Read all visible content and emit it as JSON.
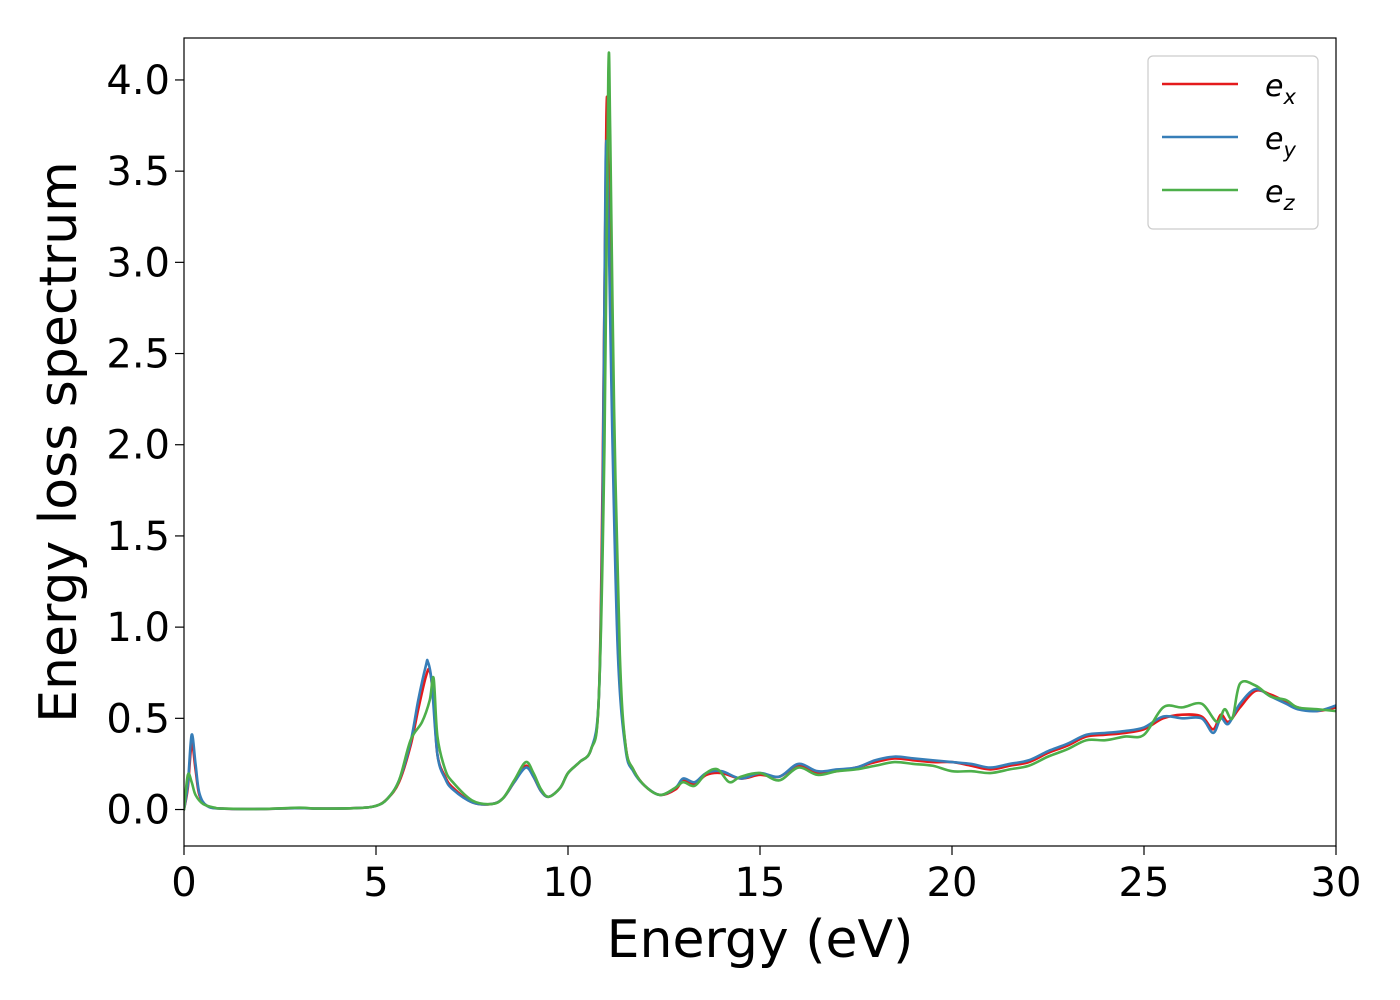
{
  "chart_data": {
    "type": "line",
    "title": "",
    "xlabel": "Energy (eV)",
    "ylabel": "Energy loss spectrum",
    "xlim": [
      0,
      30
    ],
    "ylim": [
      -0.2,
      4.23
    ],
    "xticks": [
      0,
      5,
      10,
      15,
      20,
      25,
      30
    ],
    "xtick_labels": [
      "0",
      "5",
      "10",
      "15",
      "20",
      "25",
      "30"
    ],
    "yticks": [
      0.0,
      0.5,
      1.0,
      1.5,
      2.0,
      2.5,
      3.0,
      3.5,
      4.0
    ],
    "ytick_labels": [
      "0.0",
      "0.5",
      "1.0",
      "1.5",
      "2.0",
      "2.5",
      "3.0",
      "3.5",
      "4.0"
    ],
    "grid": false,
    "legend_position": "top-right",
    "series": [
      {
        "name": "e_x",
        "label_base": "e",
        "label_sub": "x",
        "color": "#e41a1c",
        "points": [
          [
            0,
            0.0
          ],
          [
            0.1,
            0.12
          ],
          [
            0.2,
            0.36
          ],
          [
            0.3,
            0.22
          ],
          [
            0.4,
            0.08
          ],
          [
            0.6,
            0.02
          ],
          [
            1.0,
            0.005
          ],
          [
            2.0,
            0.003
          ],
          [
            3.0,
            0.008
          ],
          [
            3.5,
            0.005
          ],
          [
            4.5,
            0.008
          ],
          [
            5.0,
            0.02
          ],
          [
            5.3,
            0.06
          ],
          [
            5.6,
            0.15
          ],
          [
            5.9,
            0.35
          ],
          [
            6.1,
            0.55
          ],
          [
            6.3,
            0.73
          ],
          [
            6.4,
            0.76
          ],
          [
            6.5,
            0.6
          ],
          [
            6.6,
            0.3
          ],
          [
            6.8,
            0.18
          ],
          [
            7.0,
            0.12
          ],
          [
            7.5,
            0.04
          ],
          [
            8.0,
            0.03
          ],
          [
            8.3,
            0.06
          ],
          [
            8.6,
            0.15
          ],
          [
            8.9,
            0.24
          ],
          [
            9.1,
            0.18
          ],
          [
            9.3,
            0.1
          ],
          [
            9.5,
            0.07
          ],
          [
            9.8,
            0.12
          ],
          [
            10.0,
            0.2
          ],
          [
            10.3,
            0.26
          ],
          [
            10.6,
            0.33
          ],
          [
            10.8,
            0.6
          ],
          [
            10.9,
            1.8
          ],
          [
            11.0,
            3.8
          ],
          [
            11.05,
            3.5
          ],
          [
            11.15,
            2.3
          ],
          [
            11.3,
            0.9
          ],
          [
            11.5,
            0.35
          ],
          [
            11.7,
            0.22
          ],
          [
            12.0,
            0.13
          ],
          [
            12.4,
            0.08
          ],
          [
            12.8,
            0.11
          ],
          [
            13.0,
            0.16
          ],
          [
            13.3,
            0.14
          ],
          [
            13.6,
            0.19
          ],
          [
            14.0,
            0.2
          ],
          [
            14.5,
            0.17
          ],
          [
            15.0,
            0.19
          ],
          [
            15.5,
            0.18
          ],
          [
            16.0,
            0.24
          ],
          [
            16.5,
            0.2
          ],
          [
            17.0,
            0.21
          ],
          [
            17.5,
            0.23
          ],
          [
            18.0,
            0.26
          ],
          [
            18.5,
            0.28
          ],
          [
            19.0,
            0.27
          ],
          [
            19.5,
            0.26
          ],
          [
            20.0,
            0.26
          ],
          [
            20.5,
            0.24
          ],
          [
            21.0,
            0.22
          ],
          [
            21.5,
            0.24
          ],
          [
            22.0,
            0.26
          ],
          [
            22.5,
            0.31
          ],
          [
            23.0,
            0.35
          ],
          [
            23.5,
            0.4
          ],
          [
            24.0,
            0.41
          ],
          [
            24.5,
            0.42
          ],
          [
            25.0,
            0.44
          ],
          [
            25.5,
            0.5
          ],
          [
            26.0,
            0.52
          ],
          [
            26.5,
            0.51
          ],
          [
            26.8,
            0.44
          ],
          [
            27.0,
            0.52
          ],
          [
            27.2,
            0.48
          ],
          [
            27.5,
            0.56
          ],
          [
            27.9,
            0.65
          ],
          [
            28.3,
            0.63
          ],
          [
            28.7,
            0.59
          ],
          [
            29.0,
            0.56
          ],
          [
            29.5,
            0.54
          ],
          [
            30.0,
            0.56
          ]
        ]
      },
      {
        "name": "e_y",
        "label_base": "e",
        "label_sub": "y",
        "color": "#377eb8",
        "points": [
          [
            0,
            0.0
          ],
          [
            0.1,
            0.14
          ],
          [
            0.2,
            0.41
          ],
          [
            0.3,
            0.25
          ],
          [
            0.4,
            0.09
          ],
          [
            0.6,
            0.02
          ],
          [
            1.0,
            0.005
          ],
          [
            2.0,
            0.003
          ],
          [
            3.0,
            0.008
          ],
          [
            3.5,
            0.005
          ],
          [
            4.5,
            0.008
          ],
          [
            5.0,
            0.02
          ],
          [
            5.3,
            0.06
          ],
          [
            5.6,
            0.16
          ],
          [
            5.9,
            0.37
          ],
          [
            6.1,
            0.6
          ],
          [
            6.3,
            0.79
          ],
          [
            6.35,
            0.81
          ],
          [
            6.45,
            0.7
          ],
          [
            6.6,
            0.3
          ],
          [
            6.8,
            0.17
          ],
          [
            7.0,
            0.11
          ],
          [
            7.5,
            0.04
          ],
          [
            8.0,
            0.03
          ],
          [
            8.3,
            0.06
          ],
          [
            8.6,
            0.15
          ],
          [
            8.9,
            0.23
          ],
          [
            9.1,
            0.18
          ],
          [
            9.3,
            0.1
          ],
          [
            9.5,
            0.07
          ],
          [
            9.8,
            0.12
          ],
          [
            10.0,
            0.2
          ],
          [
            10.3,
            0.26
          ],
          [
            10.6,
            0.33
          ],
          [
            10.8,
            0.6
          ],
          [
            10.9,
            1.6
          ],
          [
            10.98,
            3.55
          ],
          [
            11.05,
            3.3
          ],
          [
            11.15,
            2.1
          ],
          [
            11.3,
            0.85
          ],
          [
            11.5,
            0.33
          ],
          [
            11.7,
            0.21
          ],
          [
            12.0,
            0.13
          ],
          [
            12.4,
            0.08
          ],
          [
            12.8,
            0.12
          ],
          [
            13.0,
            0.17
          ],
          [
            13.3,
            0.15
          ],
          [
            13.6,
            0.2
          ],
          [
            14.0,
            0.21
          ],
          [
            14.5,
            0.17
          ],
          [
            15.0,
            0.2
          ],
          [
            15.5,
            0.18
          ],
          [
            16.0,
            0.25
          ],
          [
            16.5,
            0.21
          ],
          [
            17.0,
            0.22
          ],
          [
            17.5,
            0.23
          ],
          [
            18.0,
            0.27
          ],
          [
            18.5,
            0.29
          ],
          [
            19.0,
            0.28
          ],
          [
            19.5,
            0.27
          ],
          [
            20.0,
            0.26
          ],
          [
            20.5,
            0.25
          ],
          [
            21.0,
            0.23
          ],
          [
            21.5,
            0.25
          ],
          [
            22.0,
            0.27
          ],
          [
            22.5,
            0.32
          ],
          [
            23.0,
            0.36
          ],
          [
            23.5,
            0.41
          ],
          [
            24.0,
            0.42
          ],
          [
            24.5,
            0.43
          ],
          [
            25.0,
            0.45
          ],
          [
            25.5,
            0.51
          ],
          [
            26.0,
            0.5
          ],
          [
            26.5,
            0.5
          ],
          [
            26.8,
            0.42
          ],
          [
            27.0,
            0.5
          ],
          [
            27.2,
            0.47
          ],
          [
            27.5,
            0.58
          ],
          [
            27.9,
            0.66
          ],
          [
            28.3,
            0.62
          ],
          [
            28.7,
            0.58
          ],
          [
            29.0,
            0.55
          ],
          [
            29.5,
            0.54
          ],
          [
            30.0,
            0.57
          ]
        ]
      },
      {
        "name": "e_z",
        "label_base": "e",
        "label_sub": "z",
        "color": "#4daf4a",
        "points": [
          [
            0,
            0.0
          ],
          [
            0.1,
            0.19
          ],
          [
            0.2,
            0.15
          ],
          [
            0.3,
            0.08
          ],
          [
            0.5,
            0.03
          ],
          [
            0.8,
            0.01
          ],
          [
            1.0,
            0.005
          ],
          [
            2.0,
            0.003
          ],
          [
            3.0,
            0.01
          ],
          [
            3.5,
            0.005
          ],
          [
            4.5,
            0.008
          ],
          [
            5.0,
            0.02
          ],
          [
            5.3,
            0.06
          ],
          [
            5.6,
            0.16
          ],
          [
            5.9,
            0.38
          ],
          [
            6.2,
            0.48
          ],
          [
            6.4,
            0.6
          ],
          [
            6.5,
            0.72
          ],
          [
            6.6,
            0.4
          ],
          [
            6.8,
            0.22
          ],
          [
            7.0,
            0.15
          ],
          [
            7.5,
            0.05
          ],
          [
            8.0,
            0.03
          ],
          [
            8.3,
            0.06
          ],
          [
            8.6,
            0.16
          ],
          [
            8.9,
            0.26
          ],
          [
            9.1,
            0.2
          ],
          [
            9.3,
            0.11
          ],
          [
            9.5,
            0.07
          ],
          [
            9.8,
            0.12
          ],
          [
            10.0,
            0.2
          ],
          [
            10.3,
            0.26
          ],
          [
            10.6,
            0.33
          ],
          [
            10.8,
            0.6
          ],
          [
            10.95,
            2.0
          ],
          [
            11.05,
            4.04
          ],
          [
            11.1,
            3.7
          ],
          [
            11.2,
            2.2
          ],
          [
            11.35,
            0.85
          ],
          [
            11.5,
            0.35
          ],
          [
            11.7,
            0.22
          ],
          [
            12.0,
            0.13
          ],
          [
            12.4,
            0.08
          ],
          [
            12.8,
            0.12
          ],
          [
            13.0,
            0.15
          ],
          [
            13.3,
            0.13
          ],
          [
            13.6,
            0.2
          ],
          [
            13.9,
            0.22
          ],
          [
            14.2,
            0.15
          ],
          [
            14.5,
            0.18
          ],
          [
            15.0,
            0.2
          ],
          [
            15.5,
            0.16
          ],
          [
            16.0,
            0.23
          ],
          [
            16.5,
            0.19
          ],
          [
            17.0,
            0.21
          ],
          [
            17.5,
            0.22
          ],
          [
            18.0,
            0.24
          ],
          [
            18.5,
            0.26
          ],
          [
            19.0,
            0.25
          ],
          [
            19.5,
            0.24
          ],
          [
            20.0,
            0.21
          ],
          [
            20.5,
            0.21
          ],
          [
            21.0,
            0.2
          ],
          [
            21.5,
            0.22
          ],
          [
            22.0,
            0.24
          ],
          [
            22.5,
            0.29
          ],
          [
            23.0,
            0.33
          ],
          [
            23.5,
            0.38
          ],
          [
            24.0,
            0.38
          ],
          [
            24.5,
            0.4
          ],
          [
            25.0,
            0.41
          ],
          [
            25.5,
            0.56
          ],
          [
            26.0,
            0.56
          ],
          [
            26.5,
            0.58
          ],
          [
            26.9,
            0.48
          ],
          [
            27.1,
            0.55
          ],
          [
            27.3,
            0.5
          ],
          [
            27.5,
            0.69
          ],
          [
            27.9,
            0.68
          ],
          [
            28.3,
            0.62
          ],
          [
            28.7,
            0.6
          ],
          [
            29.0,
            0.56
          ],
          [
            29.5,
            0.55
          ],
          [
            30.0,
            0.54
          ]
        ]
      }
    ]
  }
}
